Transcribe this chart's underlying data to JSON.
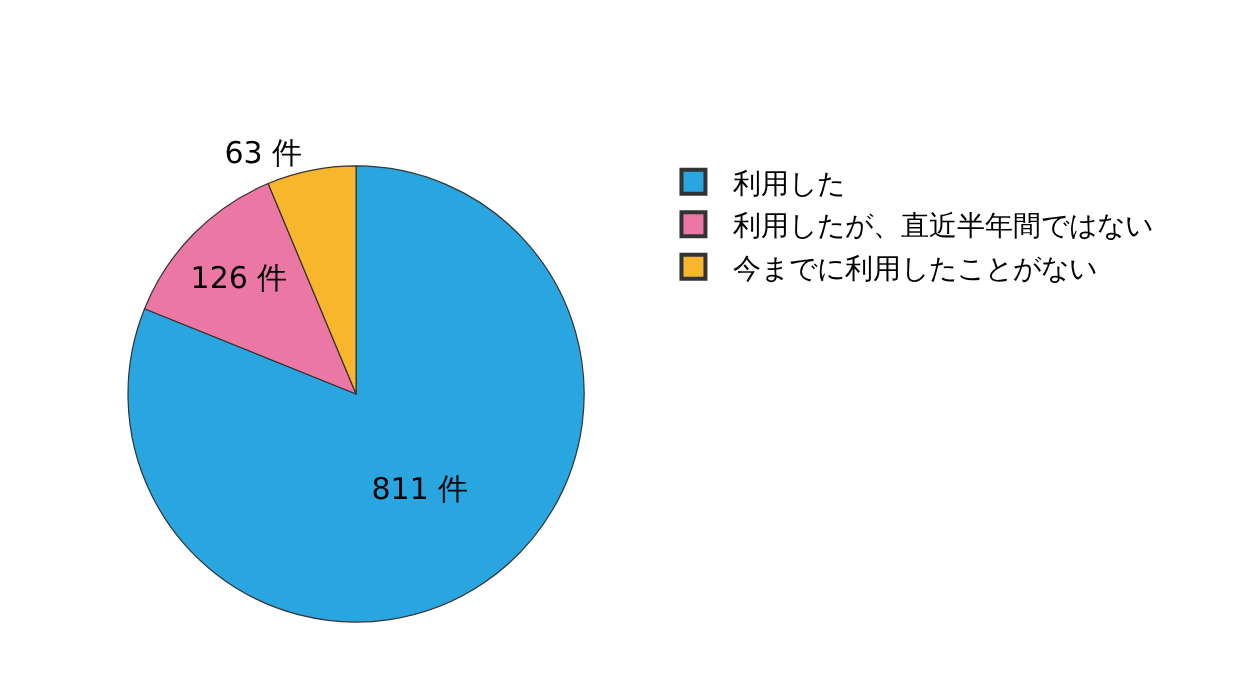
{
  "chart_data": {
    "type": "pie",
    "categories": [
      "利用した",
      "利用したが、直近半年間ではない",
      "今までに利用したことがない"
    ],
    "values": [
      811,
      126,
      63
    ],
    "value_labels": [
      "811 件",
      "126 件",
      "63 件"
    ],
    "colors": [
      "#29a6e0",
      "#eb77a4",
      "#f8b62d"
    ],
    "legend": "top right"
  }
}
